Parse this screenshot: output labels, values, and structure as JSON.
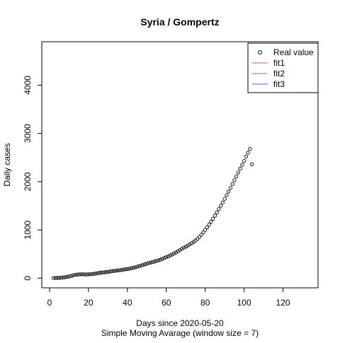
{
  "chart_data": {
    "type": "scatter",
    "title": "Syria / Gompertz",
    "xlabel": "Days since 2020-05-20",
    "subtitle": "Simple Moving Avarage (window size = 7)",
    "ylabel": "Daily cases",
    "xlim": [
      -4,
      138
    ],
    "ylim": [
      -200,
      4900
    ],
    "x_ticks": [
      0,
      20,
      40,
      60,
      80,
      100,
      120
    ],
    "y_ticks": [
      0,
      1000,
      2000,
      3000,
      4000
    ],
    "grid": false,
    "legend_position": "top-right",
    "legend": [
      {
        "label": "Real value",
        "kind": "point",
        "color": "#000000"
      },
      {
        "label": "fit1",
        "kind": "line",
        "color": "#c05090"
      },
      {
        "label": "fit2",
        "kind": "line",
        "color": "#40b040"
      },
      {
        "label": "fit3",
        "kind": "line",
        "color": "#2a6fd6"
      }
    ],
    "series": [
      {
        "name": "Real value",
        "x": [
          2,
          3,
          4,
          5,
          6,
          7,
          8,
          9,
          10,
          11,
          12,
          13,
          14,
          15,
          16,
          17,
          18,
          19,
          20,
          21,
          22,
          23,
          24,
          25,
          26,
          27,
          28,
          29,
          30,
          31,
          32,
          33,
          34,
          35,
          36,
          37,
          38,
          39,
          40,
          41,
          42,
          43,
          44,
          45,
          46,
          47,
          48,
          49,
          50,
          51,
          52,
          53,
          54,
          55,
          56,
          57,
          58,
          59,
          60,
          61,
          62,
          63,
          64,
          65,
          66,
          67,
          68,
          69,
          70,
          71,
          72,
          73,
          74,
          75,
          76,
          77,
          78,
          79,
          80,
          81,
          82,
          83,
          84,
          85,
          86,
          87,
          88,
          89,
          90,
          91,
          92,
          93,
          94,
          95,
          96,
          97,
          98,
          99,
          100,
          101,
          102,
          103,
          104
        ],
        "y": [
          5,
          5,
          6,
          8,
          10,
          15,
          20,
          28,
          35,
          45,
          58,
          68,
          75,
          78,
          80,
          80,
          78,
          78,
          80,
          82,
          88,
          92,
          98,
          105,
          112,
          118,
          122,
          125,
          130,
          138,
          145,
          150,
          155,
          160,
          165,
          170,
          178,
          185,
          190,
          198,
          205,
          215,
          225,
          238,
          250,
          262,
          275,
          288,
          300,
          312,
          325,
          335,
          345,
          358,
          370,
          385,
          400,
          418,
          435,
          452,
          470,
          490,
          512,
          535,
          558,
          582,
          608,
          632,
          652,
          675,
          700,
          725,
          750,
          780,
          815,
          855,
          900,
          950,
          1000,
          1055,
          1110,
          1170,
          1230,
          1295,
          1360,
          1430,
          1500,
          1570,
          1645,
          1720,
          1795,
          1870,
          1950,
          2030,
          2110,
          2190,
          2270,
          2350,
          2430,
          2520,
          2600,
          2680,
          2360
        ]
      }
    ]
  }
}
